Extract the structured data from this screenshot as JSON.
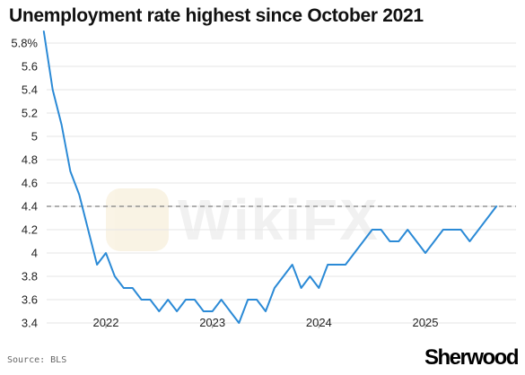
{
  "chart_data": {
    "type": "line",
    "title": "Unemployment rate highest since October 2021",
    "xlabel": "",
    "ylabel": "",
    "ylim": [
      3.4,
      5.9
    ],
    "yticks": [
      "5.8%",
      "5.6",
      "5.4",
      "5.2",
      "5",
      "4.8",
      "4.6",
      "4.4",
      "4.2",
      "4",
      "3.8",
      "3.6",
      "3.4"
    ],
    "ytick_values": [
      5.8,
      5.6,
      5.4,
      5.2,
      5.0,
      4.8,
      4.6,
      4.4,
      4.2,
      4.0,
      3.8,
      3.6,
      3.4
    ],
    "xticks": [
      "2022",
      "2023",
      "2024",
      "2025"
    ],
    "reference_line": {
      "value": 4.4,
      "style": "dashed",
      "color": "#7f7f7f"
    },
    "grid": "horizontal",
    "series": [
      {
        "color": "#2b8ad6",
        "x": [
          "2021-06",
          "2021-07",
          "2021-08",
          "2021-09",
          "2021-10",
          "2021-11",
          "2021-12",
          "2022-01",
          "2022-02",
          "2022-03",
          "2022-04",
          "2022-05",
          "2022-06",
          "2022-07",
          "2022-08",
          "2022-09",
          "2022-10",
          "2022-11",
          "2022-12",
          "2023-01",
          "2023-02",
          "2023-03",
          "2023-04",
          "2023-05",
          "2023-06",
          "2023-07",
          "2023-08",
          "2023-09",
          "2023-10",
          "2023-11",
          "2023-12",
          "2024-01",
          "2024-02",
          "2024-03",
          "2024-04",
          "2024-05",
          "2024-06",
          "2024-07",
          "2024-08",
          "2024-09",
          "2024-10",
          "2024-11",
          "2024-12",
          "2025-01",
          "2025-02",
          "2025-03",
          "2025-04",
          "2025-05",
          "2025-06",
          "2025-07",
          "2025-08",
          "2025-09"
        ],
        "values": [
          5.9,
          5.4,
          5.1,
          4.7,
          4.5,
          4.2,
          3.9,
          4.0,
          3.8,
          3.7,
          3.7,
          3.6,
          3.6,
          3.5,
          3.6,
          3.5,
          3.6,
          3.6,
          3.5,
          3.5,
          3.6,
          3.5,
          3.4,
          3.6,
          3.6,
          3.5,
          3.7,
          3.8,
          3.9,
          3.7,
          3.8,
          3.7,
          3.9,
          3.9,
          3.9,
          4.0,
          4.1,
          4.2,
          4.2,
          4.1,
          4.1,
          4.2,
          4.1,
          4.0,
          4.1,
          4.2,
          4.2,
          4.2,
          4.1,
          4.2,
          4.3,
          4.4
        ]
      }
    ]
  },
  "footer": {
    "source": "Source: BLS",
    "brand": "Sherwood"
  },
  "watermark": "WikiFX"
}
